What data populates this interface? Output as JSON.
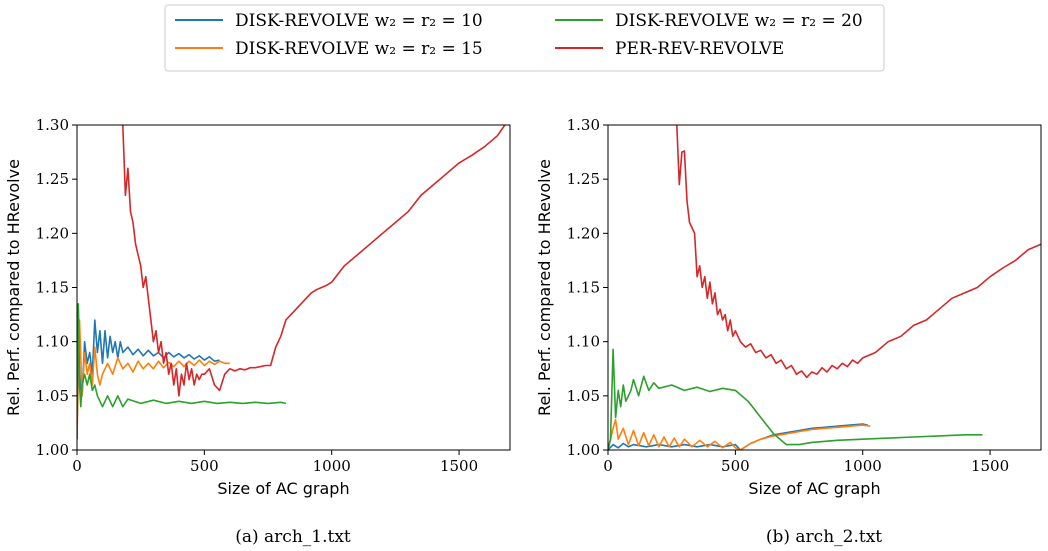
{
  "legend": {
    "entries": [
      {
        "label": "DISK-REVOLVE w₂ = r₂ = 10",
        "color": "#1f77b4"
      },
      {
        "label": "DISK-REVOLVE w₂ = r₂ = 15",
        "color": "#ff7f0e"
      },
      {
        "label": "DISK-REVOLVE w₂ = r₂ = 20",
        "color": "#2ca02c"
      },
      {
        "label": "PER-REV-REVOLVE",
        "color": "#d62728"
      }
    ]
  },
  "chart_data": [
    {
      "type": "line",
      "caption": "(a) arch_1.txt",
      "xlabel": "Size of AC graph",
      "ylabel": "Rel. Perf. compared to HRevolve",
      "xlim": [
        0,
        1700
      ],
      "ylim": [
        1.0,
        1.3
      ],
      "xticks": [
        0,
        500,
        1000,
        1500
      ],
      "yticks": [
        1.0,
        1.05,
        1.1,
        1.15,
        1.2,
        1.25,
        1.3
      ],
      "ytick_labels": [
        "1.00",
        "1.05",
        "1.10",
        "1.15",
        "1.20",
        "1.25",
        "1.30"
      ],
      "series": [
        {
          "name": "DISK-REVOLVE w₂ = r₂ = 10",
          "color": "#1f77b4",
          "x": [
            0,
            5,
            10,
            20,
            30,
            40,
            50,
            60,
            70,
            80,
            90,
            100,
            110,
            120,
            130,
            140,
            150,
            160,
            170,
            180,
            200,
            220,
            240,
            260,
            280,
            300,
            320,
            340,
            360,
            380,
            400,
            420,
            440,
            460,
            480,
            500,
            520,
            540,
            560
          ],
          "y": [
            1.01,
            1.13,
            1.07,
            1.05,
            1.1,
            1.08,
            1.09,
            1.07,
            1.12,
            1.09,
            1.11,
            1.08,
            1.11,
            1.085,
            1.105,
            1.09,
            1.1,
            1.085,
            1.1,
            1.09,
            1.095,
            1.088,
            1.093,
            1.087,
            1.092,
            1.087,
            1.09,
            1.085,
            1.09,
            1.086,
            1.089,
            1.085,
            1.088,
            1.084,
            1.087,
            1.083,
            1.086,
            1.082,
            1.083
          ]
        },
        {
          "name": "DISK-REVOLVE w₂ = r₂ = 15",
          "color": "#ff7f0e",
          "x": [
            0,
            10,
            20,
            30,
            40,
            50,
            60,
            70,
            80,
            90,
            100,
            120,
            140,
            160,
            180,
            200,
            220,
            240,
            260,
            280,
            300,
            320,
            340,
            360,
            380,
            400,
            420,
            440,
            460,
            480,
            500,
            520,
            540,
            560,
            580,
            600
          ],
          "y": [
            1.01,
            1.12,
            1.05,
            1.09,
            1.07,
            1.08,
            1.06,
            1.095,
            1.07,
            1.06,
            1.07,
            1.08,
            1.07,
            1.085,
            1.075,
            1.08,
            1.072,
            1.082,
            1.075,
            1.08,
            1.075,
            1.082,
            1.076,
            1.081,
            1.077,
            1.082,
            1.077,
            1.082,
            1.078,
            1.083,
            1.078,
            1.082,
            1.079,
            1.082,
            1.08,
            1.08
          ]
        },
        {
          "name": "DISK-REVOLVE w₂ = r₂ = 20",
          "color": "#2ca02c",
          "x": [
            0,
            5,
            10,
            15,
            20,
            30,
            40,
            50,
            60,
            70,
            80,
            100,
            120,
            140,
            160,
            180,
            200,
            250,
            300,
            350,
            400,
            450,
            500,
            550,
            600,
            650,
            700,
            750,
            800,
            820
          ],
          "y": [
            1.01,
            1.135,
            1.06,
            1.04,
            1.06,
            1.07,
            1.06,
            1.07,
            1.055,
            1.06,
            1.05,
            1.04,
            1.05,
            1.04,
            1.05,
            1.04,
            1.047,
            1.043,
            1.046,
            1.043,
            1.045,
            1.043,
            1.045,
            1.043,
            1.044,
            1.043,
            1.044,
            1.043,
            1.044,
            1.043
          ]
        },
        {
          "name": "PER-REV-REVOLVE",
          "color": "#d62728",
          "x": [
            180,
            190,
            200,
            210,
            220,
            230,
            240,
            250,
            260,
            270,
            280,
            290,
            300,
            310,
            320,
            330,
            340,
            350,
            360,
            370,
            380,
            390,
            400,
            410,
            420,
            430,
            440,
            450,
            460,
            470,
            480,
            490,
            500,
            520,
            540,
            560,
            580,
            600,
            620,
            640,
            660,
            680,
            700,
            720,
            740,
            760,
            780,
            800,
            820,
            840,
            860,
            880,
            900,
            920,
            940,
            960,
            980,
            1000,
            1050,
            1100,
            1150,
            1200,
            1250,
            1300,
            1350,
            1400,
            1450,
            1500,
            1550,
            1600,
            1650,
            1680
          ],
          "y": [
            1.3,
            1.235,
            1.26,
            1.22,
            1.21,
            1.19,
            1.18,
            1.17,
            1.15,
            1.16,
            1.14,
            1.12,
            1.1,
            1.11,
            1.09,
            1.1,
            1.08,
            1.09,
            1.07,
            1.08,
            1.06,
            1.075,
            1.05,
            1.07,
            1.06,
            1.08,
            1.065,
            1.075,
            1.06,
            1.07,
            1.065,
            1.07,
            1.07,
            1.075,
            1.06,
            1.055,
            1.07,
            1.075,
            1.073,
            1.075,
            1.074,
            1.076,
            1.076,
            1.077,
            1.078,
            1.078,
            1.095,
            1.105,
            1.12,
            1.125,
            1.13,
            1.135,
            1.14,
            1.145,
            1.148,
            1.15,
            1.152,
            1.155,
            1.17,
            1.18,
            1.19,
            1.2,
            1.21,
            1.22,
            1.235,
            1.245,
            1.255,
            1.265,
            1.272,
            1.28,
            1.29,
            1.3
          ]
        }
      ]
    },
    {
      "type": "line",
      "caption": "(b) arch_2.txt",
      "xlabel": "Size of AC graph",
      "ylabel": "Rel. Perf. compared to HRevolve",
      "xlim": [
        0,
        1700
      ],
      "ylim": [
        1.0,
        1.3
      ],
      "xticks": [
        0,
        500,
        1000,
        1500
      ],
      "yticks": [
        1.0,
        1.05,
        1.1,
        1.15,
        1.2,
        1.25,
        1.3
      ],
      "ytick_labels": [
        "1.00",
        "1.05",
        "1.10",
        "1.15",
        "1.20",
        "1.25",
        "1.30"
      ],
      "series": [
        {
          "name": "DISK-REVOLVE w₂ = r₂ = 10",
          "color": "#1f77b4",
          "x": [
            0,
            20,
            40,
            60,
            80,
            100,
            150,
            200,
            250,
            300,
            350,
            400,
            450,
            500,
            520,
            560,
            600,
            650,
            700,
            750,
            800,
            850,
            900,
            950,
            1000,
            1020
          ],
          "y": [
            1.0,
            1.005,
            1.002,
            1.006,
            1.003,
            1.005,
            1.003,
            1.005,
            1.003,
            1.005,
            1.003,
            1.005,
            1.003,
            1.005,
            1.0,
            1.006,
            1.01,
            1.014,
            1.016,
            1.018,
            1.02,
            1.021,
            1.022,
            1.023,
            1.024,
            1.023
          ]
        },
        {
          "name": "DISK-REVOLVE w₂ = r₂ = 15",
          "color": "#ff7f0e",
          "x": [
            0,
            20,
            30,
            40,
            60,
            80,
            100,
            120,
            140,
            160,
            180,
            200,
            220,
            240,
            260,
            280,
            300,
            330,
            360,
            390,
            420,
            450,
            480,
            500,
            520,
            560,
            600,
            650,
            700,
            750,
            800,
            850,
            900,
            950,
            1000,
            1030
          ],
          "y": [
            1.0,
            1.02,
            1.028,
            1.01,
            1.02,
            1.005,
            1.018,
            1.004,
            1.016,
            1.004,
            1.014,
            1.003,
            1.012,
            1.003,
            1.011,
            1.003,
            1.01,
            1.003,
            1.009,
            1.003,
            1.008,
            1.002,
            1.007,
            1.002,
            1.0,
            1.006,
            1.01,
            1.013,
            1.015,
            1.017,
            1.019,
            1.02,
            1.021,
            1.022,
            1.023,
            1.022
          ]
        },
        {
          "name": "DISK-REVOLVE w₂ = r₂ = 20",
          "color": "#2ca02c",
          "x": [
            0,
            10,
            20,
            30,
            40,
            50,
            60,
            70,
            80,
            90,
            100,
            120,
            140,
            160,
            180,
            200,
            250,
            300,
            350,
            400,
            450,
            500,
            550,
            600,
            650,
            700,
            750,
            800,
            900,
            1000,
            1100,
            1200,
            1300,
            1400,
            1470
          ],
          "y": [
            1.0,
            1.01,
            1.093,
            1.03,
            1.055,
            1.04,
            1.06,
            1.045,
            1.05,
            1.055,
            1.065,
            1.05,
            1.068,
            1.055,
            1.062,
            1.057,
            1.06,
            1.055,
            1.058,
            1.054,
            1.057,
            1.055,
            1.045,
            1.03,
            1.015,
            1.005,
            1.005,
            1.007,
            1.009,
            1.01,
            1.011,
            1.012,
            1.013,
            1.014,
            1.014
          ]
        },
        {
          "name": "PER-REV-REVOLVE",
          "color": "#d62728",
          "x": [
            270,
            280,
            290,
            300,
            310,
            320,
            330,
            340,
            350,
            360,
            370,
            380,
            390,
            400,
            410,
            420,
            430,
            440,
            450,
            460,
            470,
            480,
            490,
            500,
            520,
            540,
            560,
            580,
            600,
            620,
            640,
            660,
            680,
            700,
            720,
            740,
            760,
            780,
            800,
            820,
            840,
            860,
            880,
            900,
            920,
            940,
            960,
            980,
            1000,
            1050,
            1100,
            1150,
            1200,
            1250,
            1300,
            1350,
            1400,
            1450,
            1500,
            1550,
            1600,
            1650,
            1700
          ],
          "y": [
            1.3,
            1.245,
            1.275,
            1.276,
            1.23,
            1.21,
            1.205,
            1.2,
            1.16,
            1.17,
            1.15,
            1.16,
            1.14,
            1.155,
            1.135,
            1.145,
            1.125,
            1.13,
            1.12,
            1.125,
            1.11,
            1.12,
            1.105,
            1.11,
            1.1,
            1.095,
            1.098,
            1.09,
            1.092,
            1.085,
            1.088,
            1.08,
            1.083,
            1.075,
            1.078,
            1.07,
            1.073,
            1.067,
            1.072,
            1.07,
            1.076,
            1.072,
            1.078,
            1.075,
            1.08,
            1.077,
            1.083,
            1.08,
            1.085,
            1.09,
            1.1,
            1.105,
            1.115,
            1.12,
            1.13,
            1.14,
            1.145,
            1.15,
            1.16,
            1.168,
            1.175,
            1.185,
            1.19
          ]
        }
      ]
    }
  ]
}
